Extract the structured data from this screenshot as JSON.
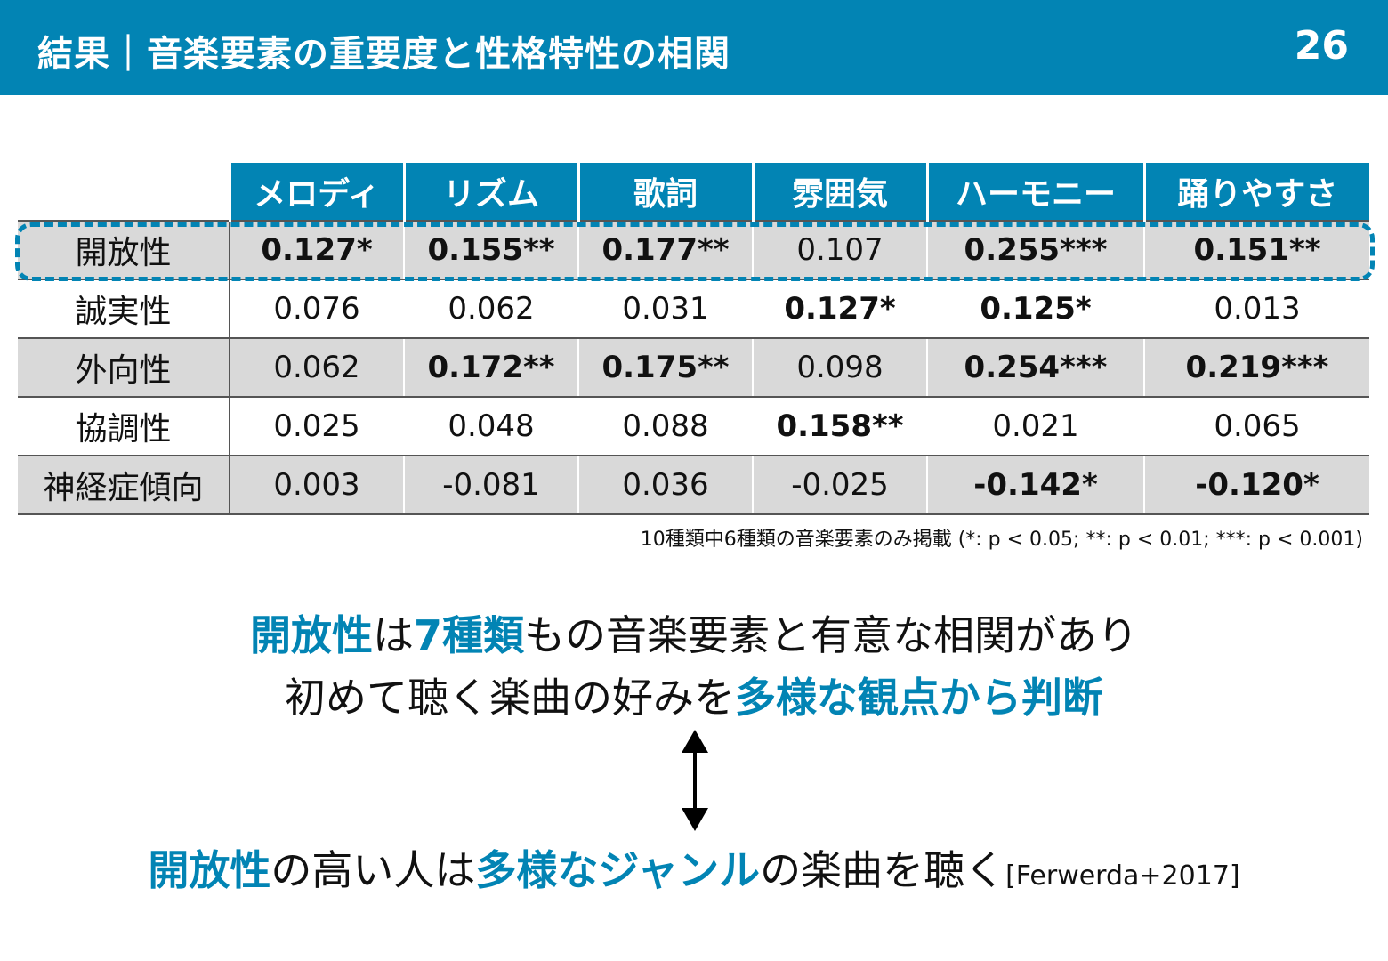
{
  "header": {
    "title": "結果｜音楽要素の重要度と性格特性の相関",
    "page_number": "26"
  },
  "table": {
    "columns": [
      "メロディ",
      "リズム",
      "歌詞",
      "雰囲気",
      "ハーモニー",
      "踊りやすさ"
    ],
    "rows": [
      {
        "label": "開放性",
        "values": [
          "0.127*",
          "0.155**",
          "0.177**",
          "0.107",
          "0.255***",
          "0.151**"
        ]
      },
      {
        "label": "誠実性",
        "values": [
          "0.076",
          "0.062",
          "0.031",
          "0.127*",
          "0.125*",
          "0.013"
        ]
      },
      {
        "label": "外向性",
        "values": [
          "0.062",
          "0.172**",
          "0.175**",
          "0.098",
          "0.254***",
          "0.219***"
        ]
      },
      {
        "label": "協調性",
        "values": [
          "0.025",
          "0.048",
          "0.088",
          "0.158**",
          "0.021",
          "0.065"
        ]
      },
      {
        "label": "神経症傾向",
        "values": [
          "0.003",
          "-0.081",
          "0.036",
          "-0.025",
          "-0.142*",
          "-0.120*"
        ]
      }
    ]
  },
  "footnote": "10種類中6種類の音楽要素のみ掲載 (*: p < 0.05; **: p < 0.01; ***: p < 0.001)",
  "summary": {
    "line1": {
      "a": "開放性",
      "b": "は",
      "c": "7種類",
      "d": "もの音楽要素と有意な相関があり"
    },
    "line2": {
      "a": "初めて聴く楽曲の好みを",
      "b": "多様な観点から判断"
    },
    "line3": {
      "a": "開放性",
      "b": "の高い人は",
      "c": "多様なジャンル",
      "d": "の楽曲を聴く",
      "ref": "[Ferwerda+2017]"
    }
  },
  "colors": {
    "accent": "#0284b4",
    "shade": "#d9d9d9"
  }
}
